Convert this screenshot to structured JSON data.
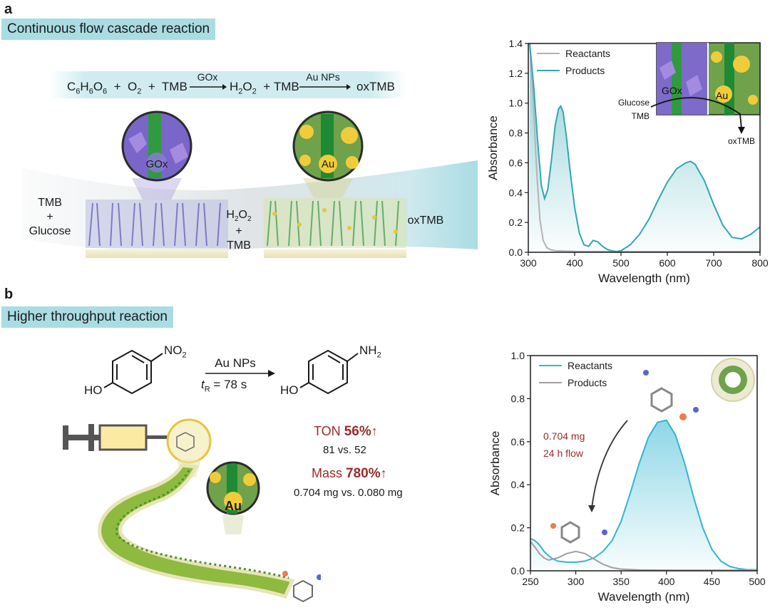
{
  "panel_a": {
    "letter": "a",
    "title": "Continuous flow cascade reaction",
    "equation": {
      "glucose": "C",
      "g_sub1": "6",
      "g_h": "H",
      "g_sub2": "6",
      "g_o": "O",
      "g_sub3": "6",
      "plus1": "+",
      "o2": "O",
      "o2_sub": "2",
      "plus2": "+",
      "tmb1": "TMB",
      "catalyst1": "GOx",
      "h2o2": "H",
      "h2o2_sub1": "2",
      "h2o2_o": "O",
      "h2o2_sub2": "2",
      "plus3": "+",
      "tmb2": "TMB",
      "catalyst2": "Au NPs",
      "product": "oxTMB"
    },
    "zone_labels": {
      "inlet_line1": "TMB",
      "inlet_line2": "+",
      "inlet_line3": "Glucose",
      "middle_line1_h": "H",
      "middle_sub1": "2",
      "middle_o": "O",
      "middle_sub2": "2",
      "middle_line2": "+",
      "middle_line3": "TMB",
      "outlet": "oxTMB"
    },
    "bubble_labels": {
      "left": "GOx",
      "right": "Au"
    }
  },
  "panel_b": {
    "letter": "b",
    "title": "Higher throughput reaction",
    "reaction": {
      "reactant_sub": "NO",
      "reactant_sub_num": "2",
      "reactant_oh": "HO",
      "catalyst": "Au NPs",
      "time_t": "t",
      "time_sub": "R",
      "time_value": "= 78 s",
      "product_sub": "NH",
      "product_sub_num": "2",
      "product_oh": "HO"
    },
    "metrics": {
      "ton_label": "TON",
      "ton_value": "56%",
      "ton_compare": "81 vs. 52",
      "mass_label": "Mass",
      "mass_value": "780%",
      "mass_compare": "0.704 mg vs. 0.080 mg"
    },
    "bubble_label": "Au"
  },
  "colors": {
    "teal": "#2ea7b4",
    "cyan": "#30b6d2",
    "gray": "#b3b3b3",
    "red": "#9c2a2a",
    "band": "#a9dde3"
  },
  "chart_data": [
    {
      "type": "line",
      "xlabel": "Wavelength (nm)",
      "ylabel": "Absorbance",
      "xlim": [
        300,
        800
      ],
      "ylim": [
        0,
        1.4
      ],
      "x_ticks": [
        "300",
        "400",
        "500",
        "600",
        "700",
        "800"
      ],
      "y_ticks": [
        "0.0",
        "0.2",
        "0.4",
        "0.6",
        "0.8",
        "1.0",
        "1.2",
        "1.4"
      ],
      "legend_position": "top-left",
      "series": [
        {
          "name": "Reactants",
          "color": "#b3b3b3",
          "x": [
            303,
            310,
            318,
            325,
            332,
            340,
            350,
            360,
            380,
            400,
            500,
            600,
            700,
            800
          ],
          "y": [
            1.4,
            1.05,
            0.55,
            0.22,
            0.08,
            0.03,
            0.015,
            0.01,
            0.008,
            0.006,
            0.005,
            0.005,
            0.005,
            0.005
          ]
        },
        {
          "name": "Products",
          "color": "#2ea7b4",
          "x": [
            303,
            312,
            320,
            328,
            335,
            342,
            350,
            358,
            365,
            370,
            375,
            382,
            390,
            400,
            410,
            420,
            430,
            440,
            450,
            460,
            470,
            480,
            490,
            500,
            520,
            540,
            560,
            580,
            600,
            620,
            640,
            650,
            660,
            680,
            700,
            720,
            740,
            760,
            780,
            800
          ],
          "y": [
            1.4,
            1.1,
            0.75,
            0.45,
            0.36,
            0.42,
            0.62,
            0.85,
            0.96,
            0.98,
            0.94,
            0.78,
            0.55,
            0.3,
            0.13,
            0.05,
            0.04,
            0.08,
            0.07,
            0.04,
            0.02,
            0.01,
            0.005,
            0.01,
            0.05,
            0.12,
            0.22,
            0.35,
            0.47,
            0.56,
            0.6,
            0.61,
            0.59,
            0.48,
            0.32,
            0.18,
            0.1,
            0.09,
            0.12,
            0.17
          ]
        }
      ],
      "inset_labels": {
        "gox": "GOx",
        "au": "Au",
        "glucose": "Glucose",
        "tmb": "TMB",
        "oxtmb": "oxTMB"
      }
    },
    {
      "type": "line",
      "xlabel": "Wavelength (nm)",
      "ylabel": "Absorbance",
      "xlim": [
        250,
        500
      ],
      "ylim": [
        0,
        1.0
      ],
      "x_ticks": [
        "250",
        "300",
        "350",
        "400",
        "450",
        "500"
      ],
      "y_ticks": [
        "0.0",
        "0.2",
        "0.4",
        "0.6",
        "0.8",
        "1.0"
      ],
      "legend_position": "top-left",
      "series": [
        {
          "name": "Reactants",
          "color": "#30b6d2",
          "x": [
            250,
            255,
            260,
            265,
            270,
            275,
            280,
            290,
            300,
            310,
            320,
            330,
            340,
            350,
            360,
            370,
            380,
            390,
            400,
            410,
            420,
            430,
            440,
            450,
            460,
            470,
            480,
            490,
            500
          ],
          "y": [
            0.15,
            0.14,
            0.12,
            0.09,
            0.07,
            0.055,
            0.045,
            0.04,
            0.04,
            0.045,
            0.06,
            0.09,
            0.14,
            0.23,
            0.36,
            0.5,
            0.62,
            0.69,
            0.7,
            0.63,
            0.5,
            0.34,
            0.2,
            0.1,
            0.045,
            0.02,
            0.01,
            0.005,
            0.005
          ]
        },
        {
          "name": "Products",
          "color": "#a0a0a0",
          "x": [
            250,
            255,
            260,
            265,
            270,
            280,
            290,
            300,
            310,
            320,
            330,
            340,
            350,
            370,
            400,
            450,
            500
          ],
          "y": [
            0.135,
            0.11,
            0.08,
            0.06,
            0.05,
            0.06,
            0.08,
            0.09,
            0.08,
            0.055,
            0.03,
            0.015,
            0.008,
            0.004,
            0.003,
            0.003,
            0.003
          ]
        }
      ],
      "annotations": {
        "line1": "0.704 mg",
        "line2": "24 h flow"
      }
    }
  ]
}
